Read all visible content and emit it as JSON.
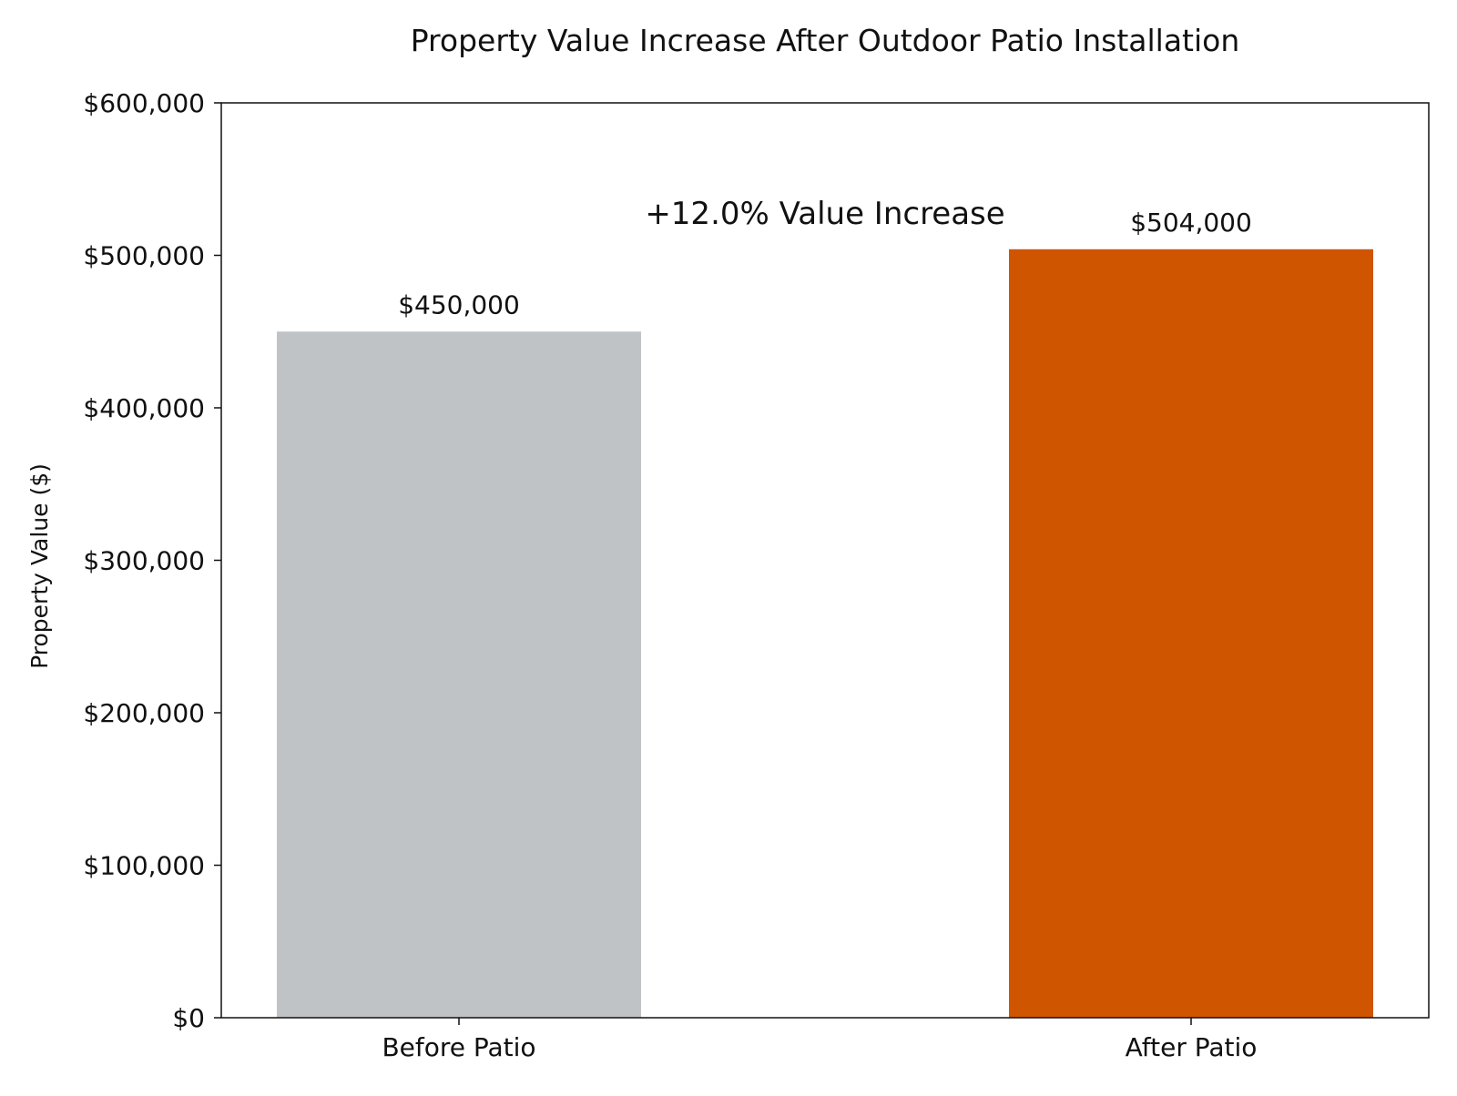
{
  "chart_data": {
    "type": "bar",
    "title": "Property Value Increase After Outdoor Patio Installation",
    "xlabel": "",
    "ylabel": "Property Value ($)",
    "categories": [
      "Before Patio",
      "After Patio"
    ],
    "values": [
      450000,
      504000
    ],
    "data_labels": [
      "$450,000",
      "$504,000"
    ],
    "colors": [
      "#bfc3c6",
      "#d05500"
    ],
    "ylim": [
      0,
      600000
    ],
    "yticks": [
      0,
      100000,
      200000,
      300000,
      400000,
      500000,
      600000
    ],
    "ytick_labels": [
      "$0",
      "$100,000",
      "$200,000",
      "$300,000",
      "$400,000",
      "$500,000",
      "$600,000"
    ],
    "annotation": {
      "text": "+12.0% Value Increase",
      "color": "#d05500"
    },
    "grid": false
  }
}
